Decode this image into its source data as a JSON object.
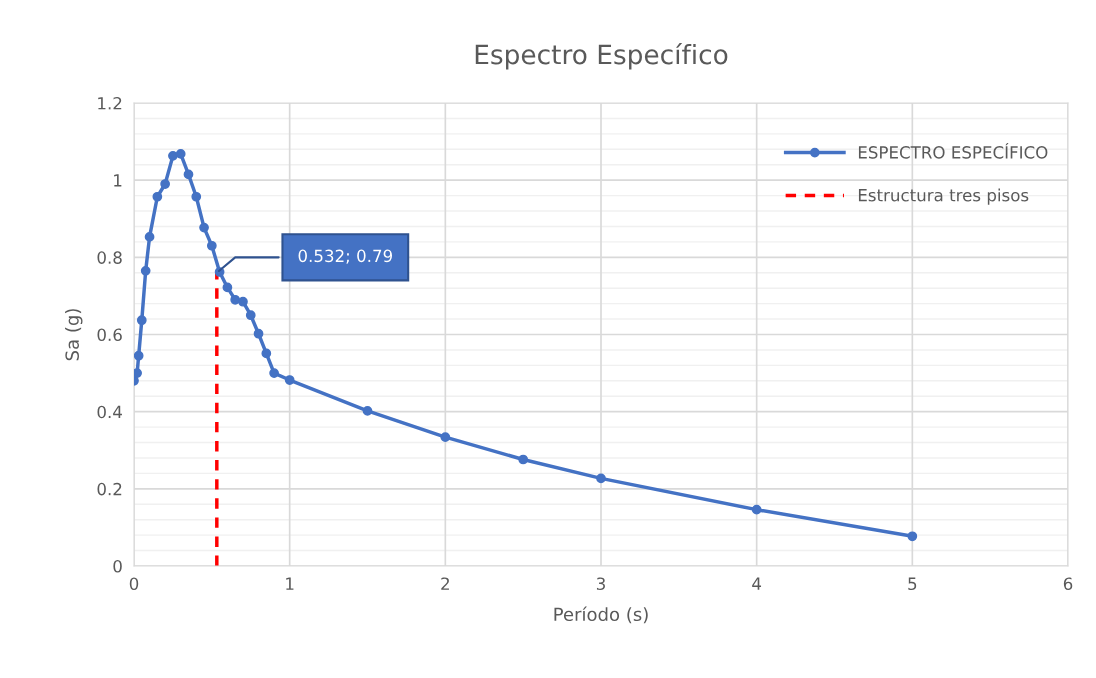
{
  "chart_data": {
    "type": "line",
    "title": "Espectro Específico",
    "xlabel": "Período (s)",
    "ylabel": "Sa (g)",
    "xlim": [
      0,
      6
    ],
    "xticks": [
      0,
      1,
      2,
      3,
      4,
      5,
      6
    ],
    "ylim": [
      0,
      1.2
    ],
    "yticks": [
      0,
      0.2,
      0.4,
      0.6,
      0.8,
      1,
      1.2
    ],
    "grid": true,
    "legend": "top right",
    "series": [
      {
        "name": "ESPECTRO ESPECÍFICO",
        "color": "#4472c4",
        "marker": "circle",
        "line_style": "solid",
        "x": [
          0,
          0.02,
          0.03,
          0.05,
          0.075,
          0.1,
          0.15,
          0.2,
          0.25,
          0.3,
          0.35,
          0.4,
          0.45,
          0.5,
          0.55,
          0.6,
          0.65,
          0.7,
          0.75,
          0.8,
          0.85,
          0.9,
          1,
          1.5,
          2,
          2.5,
          3,
          4,
          5
        ],
        "values": [
          0.48,
          0.5,
          0.545,
          0.637,
          0.765,
          0.853,
          0.957,
          0.99,
          1.063,
          1.068,
          1.015,
          0.957,
          0.877,
          0.83,
          0.762,
          0.722,
          0.69,
          0.685,
          0.65,
          0.602,
          0.551,
          0.5,
          0.482,
          0.402,
          0.334,
          0.276,
          0.227,
          0.146,
          0.077
        ]
      },
      {
        "name": "Estructura tres pisos",
        "color": "#ff0000",
        "marker": "none",
        "line_style": "dashed",
        "x": [
          0.532,
          0.532
        ],
        "values": [
          0,
          0.76
        ]
      }
    ],
    "annotations": [
      {
        "text": "0.532; 0.79",
        "x": 0.532,
        "y": 0.76
      }
    ]
  }
}
